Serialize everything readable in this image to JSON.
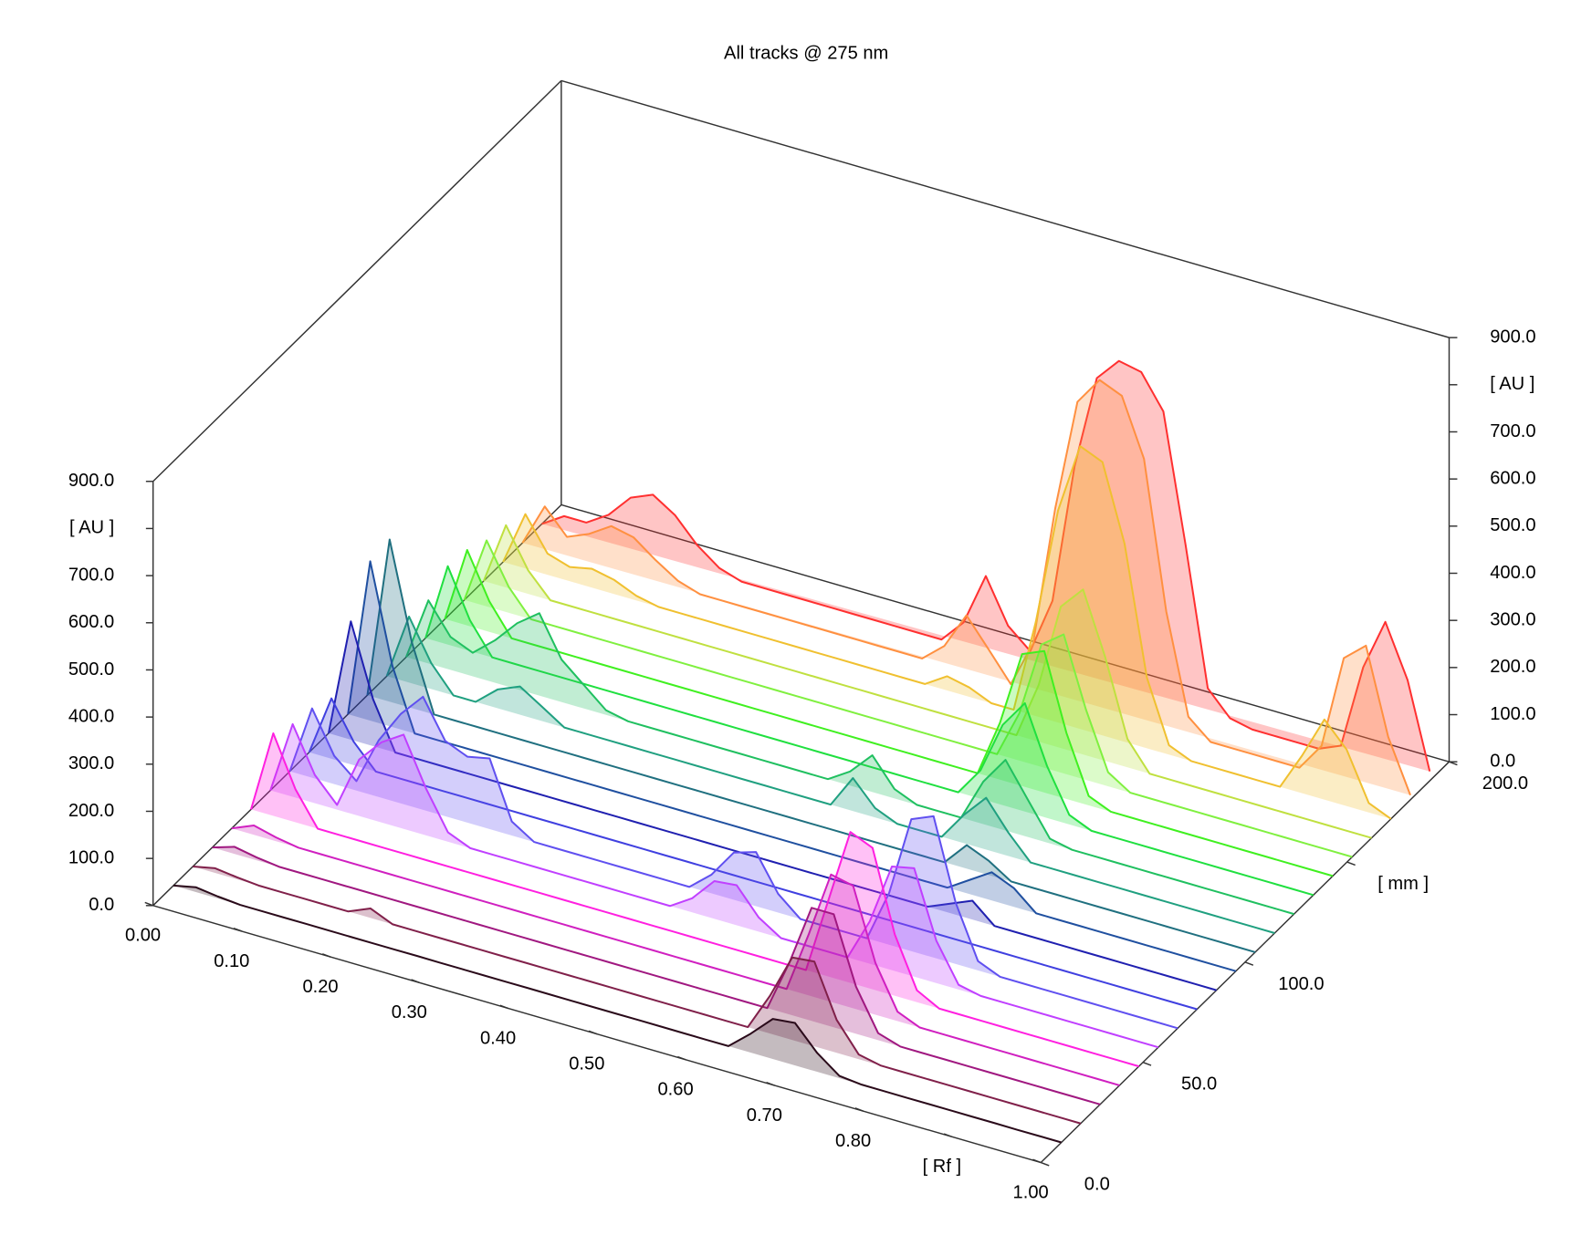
{
  "chart_data": {
    "type": "waterfall",
    "title": "All tracks @ 275 nm",
    "x": [
      0,
      0.025,
      0.05,
      0.075,
      0.1,
      0.125,
      0.15,
      0.175,
      0.2,
      0.225,
      0.25,
      0.275,
      0.3,
      0.325,
      0.35,
      0.375,
      0.4,
      0.425,
      0.45,
      0.475,
      0.5,
      0.525,
      0.55,
      0.575,
      0.6,
      0.625,
      0.65,
      0.675,
      0.7,
      0.725,
      0.75,
      0.775,
      0.8,
      0.825,
      0.85,
      0.875,
      0.9,
      0.925,
      0.95,
      0.975,
      1
    ],
    "xlim": [
      0,
      1
    ],
    "ylim": [
      0,
      200
    ],
    "zlim": [
      0,
      900
    ],
    "xticks": [
      {
        "value": 0,
        "label": "0.00"
      },
      {
        "value": 0.1,
        "label": "0.10"
      },
      {
        "value": 0.2,
        "label": "0.20"
      },
      {
        "value": 0.3,
        "label": "0.30"
      },
      {
        "value": 0.4,
        "label": "0.40"
      },
      {
        "value": 0.5,
        "label": "0.50"
      },
      {
        "value": 0.6,
        "label": "0.60"
      },
      {
        "value": 0.7,
        "label": "0.70"
      },
      {
        "value": 0.8,
        "label": "0.80"
      },
      {
        "value": 0.9,
        "label": "[ Rf ]"
      },
      {
        "value": 1,
        "label": "1.00"
      }
    ],
    "yticks": [
      {
        "value": 0,
        "label": "0.0"
      },
      {
        "value": 50,
        "label": "50.0"
      },
      {
        "value": 100,
        "label": "100.0"
      },
      {
        "value": 150,
        "label": "[ mm ]"
      },
      {
        "value": 200,
        "label": "200.0"
      }
    ],
    "zticks": [
      {
        "value": 0,
        "label": "0.0"
      },
      {
        "value": 100,
        "label": "100.0"
      },
      {
        "value": 200,
        "label": "200.0"
      },
      {
        "value": 300,
        "label": "300.0"
      },
      {
        "value": 400,
        "label": "400.0"
      },
      {
        "value": 500,
        "label": "500.0"
      },
      {
        "value": 600,
        "label": "600.0"
      },
      {
        "value": 700,
        "label": "700.0"
      },
      {
        "value": 800,
        "label": "[ AU ]"
      },
      {
        "value": 900,
        "label": "900.0"
      }
    ],
    "series": [
      {
        "color": "#2a0a1a",
        "position": 10,
        "values": [
          0,
          10,
          4,
          0,
          0,
          0,
          0,
          0,
          0,
          0,
          0,
          0,
          0,
          0,
          0,
          0,
          0,
          0,
          0,
          0,
          0,
          0,
          0,
          0,
          0,
          0,
          40,
          85,
          90,
          40,
          5,
          0,
          0,
          0,
          0,
          0,
          0,
          0,
          0,
          0,
          0
        ]
      },
      {
        "color": "#80204a",
        "position": 19.5,
        "values": [
          0,
          10,
          4,
          0,
          0,
          0,
          0,
          0,
          20,
          0,
          0,
          0,
          0,
          0,
          0,
          0,
          0,
          0,
          0,
          0,
          0,
          0,
          0,
          0,
          0,
          0,
          80,
          175,
          180,
          70,
          10,
          0,
          0,
          0,
          0,
          0,
          0,
          0,
          0,
          0,
          0
        ]
      },
      {
        "color": "#a01880",
        "position": 29,
        "values": [
          0,
          15,
          6,
          0,
          0,
          0,
          0,
          0,
          0,
          0,
          0,
          0,
          0,
          0,
          0,
          0,
          0,
          0,
          0,
          0,
          0,
          0,
          0,
          0,
          0,
          0,
          110,
          240,
          240,
          100,
          15,
          0,
          0,
          0,
          0,
          0,
          0,
          0,
          0,
          0,
          0
        ]
      },
      {
        "color": "#d020c0",
        "position": 38.5,
        "values": [
          0,
          20,
          8,
          0,
          0,
          0,
          0,
          0,
          0,
          0,
          0,
          0,
          0,
          0,
          0,
          0,
          0,
          0,
          0,
          0,
          0,
          0,
          0,
          0,
          0,
          0,
          130,
          270,
          260,
          110,
          20,
          0,
          0,
          0,
          0,
          0,
          0,
          0,
          0,
          0,
          0
        ]
      },
      {
        "color": "#ff20e0",
        "position": 48,
        "values": [
          0,
          175,
          70,
          0,
          0,
          0,
          0,
          0,
          0,
          0,
          0,
          0,
          0,
          0,
          0,
          0,
          0,
          0,
          0,
          0,
          0,
          0,
          0,
          0,
          0,
          0,
          160,
          320,
          300,
          130,
          25,
          0,
          0,
          0,
          0,
          0,
          0,
          0,
          0,
          0,
          0
        ]
      },
      {
        "color": "#c040ff",
        "position": 57.5,
        "values": [
          0,
          154,
          60,
          10,
          120,
          170,
          200,
          100,
          20,
          0,
          0,
          0,
          0,
          0,
          0,
          0,
          0,
          0,
          0,
          30,
          80,
          85,
          30,
          0,
          0,
          0,
          0,
          90,
          220,
          230,
          90,
          10,
          0,
          0,
          0,
          0,
          0,
          0,
          0,
          0,
          0
        ]
      },
      {
        "color": "#6050f0",
        "position": 67,
        "values": [
          0,
          147,
          60,
          20,
          120,
          190,
          240,
          160,
          140,
          150,
          30,
          0,
          0,
          0,
          0,
          0,
          0,
          0,
          0,
          40,
          100,
          115,
          40,
          0,
          0,
          0,
          0,
          110,
          280,
          300,
          130,
          20,
          0,
          0,
          0,
          0,
          0,
          0,
          0,
          0,
          0
        ]
      },
      {
        "color": "#4040e0",
        "position": 76.5,
        "values": [
          0,
          128,
          50,
          0,
          0,
          0,
          0,
          0,
          0,
          0,
          0,
          0,
          0,
          0,
          0,
          0,
          0,
          0,
          0,
          0,
          0,
          0,
          0,
          0,
          0,
          0,
          0,
          0,
          0,
          0,
          0,
          0,
          0,
          0,
          0,
          0,
          0,
          0,
          0,
          0,
          0
        ]
      },
      {
        "color": "#2020b0",
        "position": 86,
        "values": [
          0,
          251,
          100,
          0,
          0,
          0,
          0,
          0,
          0,
          0,
          0,
          0,
          0,
          0,
          0,
          0,
          0,
          0,
          0,
          0,
          0,
          0,
          0,
          0,
          0,
          0,
          0,
          0,
          20,
          40,
          0,
          0,
          0,
          0,
          0,
          0,
          0,
          0,
          0,
          0,
          0
        ]
      },
      {
        "color": "#2050a0",
        "position": 95.5,
        "values": [
          0,
          338,
          130,
          0,
          0,
          0,
          0,
          0,
          0,
          0,
          0,
          0,
          0,
          0,
          0,
          0,
          0,
          0,
          0,
          0,
          0,
          0,
          0,
          0,
          0,
          0,
          0,
          0,
          30,
          60,
          40,
          0,
          0,
          0,
          0,
          0,
          0,
          0,
          0,
          0,
          0
        ]
      },
      {
        "color": "#207080",
        "position": 105,
        "values": [
          0,
          344,
          140,
          0,
          0,
          0,
          0,
          0,
          0,
          0,
          0,
          0,
          0,
          0,
          0,
          0,
          0,
          0,
          0,
          0,
          0,
          0,
          0,
          0,
          0,
          0,
          0,
          50,
          30,
          0,
          0,
          0,
          0,
          0,
          0,
          0,
          0,
          0,
          0,
          0,
          0
        ]
      },
      {
        "color": "#20a080",
        "position": 114.5,
        "values": [
          0,
          140,
          55,
          0,
          0,
          40,
          60,
          30,
          0,
          0,
          0,
          0,
          0,
          0,
          0,
          0,
          0,
          0,
          0,
          0,
          0,
          70,
          20,
          0,
          0,
          0,
          60,
          110,
          50,
          0,
          0,
          0,
          0,
          0,
          0,
          0,
          0,
          0,
          0,
          0,
          0
        ]
      },
      {
        "color": "#20c060",
        "position": 124,
        "values": [
          0,
          134,
          70,
          50,
          90,
          140,
          175,
          90,
          50,
          10,
          0,
          0,
          0,
          0,
          0,
          0,
          0,
          0,
          0,
          0,
          30,
          78,
          20,
          0,
          0,
          0,
          90,
          150,
          80,
          10,
          0,
          0,
          0,
          0,
          0,
          0,
          0,
          0,
          0,
          0,
          0
        ]
      },
      {
        "color": "#20e040",
        "position": 133.5,
        "values": [
          0,
          166,
          65,
          0,
          0,
          0,
          0,
          0,
          0,
          0,
          0,
          0,
          0,
          0,
          0,
          0,
          0,
          0,
          0,
          0,
          0,
          0,
          0,
          0,
          0,
          60,
          170,
          230,
          110,
          20,
          0,
          0,
          0,
          0,
          0,
          0,
          0,
          0,
          0,
          0,
          0
        ]
      },
      {
        "color": "#40f020",
        "position": 143,
        "values": [
          0,
          160,
          65,
          0,
          0,
          0,
          0,
          0,
          0,
          0,
          0,
          0,
          0,
          0,
          0,
          0,
          0,
          0,
          0,
          0,
          0,
          0,
          0,
          0,
          0,
          120,
          280,
          300,
          140,
          20,
          0,
          0,
          0,
          0,
          0,
          0,
          0,
          0,
          0,
          0,
          0
        ]
      },
      {
        "color": "#80f040",
        "position": 152.5,
        "values": [
          0,
          140,
          55,
          0,
          0,
          0,
          0,
          0,
          0,
          0,
          0,
          0,
          0,
          0,
          0,
          0,
          0,
          0,
          0,
          0,
          0,
          0,
          0,
          0,
          0,
          100,
          260,
          295,
          150,
          30,
          0,
          0,
          0,
          0,
          0,
          0,
          0,
          0,
          0,
          0,
          0
        ]
      },
      {
        "color": "#c0e040",
        "position": 162,
        "values": [
          0,
          132,
          50,
          0,
          0,
          0,
          0,
          0,
          0,
          0,
          0,
          0,
          0,
          0,
          0,
          0,
          0,
          0,
          0,
          0,
          0,
          0,
          0,
          0,
          0,
          120,
          300,
          350,
          220,
          60,
          0,
          0,
          0,
          0,
          0,
          0,
          0,
          0,
          0,
          0,
          0
        ]
      },
      {
        "color": "#f0c030",
        "position": 171.5,
        "values": [
          0,
          115,
          45,
          30,
          40,
          30,
          10,
          0,
          0,
          0,
          0,
          0,
          0,
          0,
          0,
          0,
          0,
          0,
          0,
          0,
          30,
          20,
          0,
          0,
          200,
          450,
          600,
          580,
          420,
          150,
          20,
          0,
          0,
          0,
          0,
          0,
          80,
          170,
          120,
          20,
          0
        ]
      },
      {
        "color": "#ff9040",
        "position": 181,
        "values": [
          0,
          91,
          40,
          60,
          90,
          80,
          45,
          15,
          0,
          0,
          0,
          0,
          0,
          0,
          0,
          0,
          0,
          0,
          0,
          40,
          119,
          60,
          0,
          100,
          400,
          640,
          700,
          680,
          560,
          250,
          40,
          0,
          0,
          0,
          0,
          0,
          60,
          260,
          300,
          120,
          10
        ]
      },
      {
        "color": "#ff3030",
        "position": 190.5,
        "values": [
          0,
          30,
          30,
          60,
          110,
          130,
          100,
          50,
          15,
          0,
          0,
          0,
          0,
          0,
          0,
          0,
          0,
          0,
          0,
          50,
          162,
          70,
          30,
          150,
          450,
          650,
          700,
          690,
          620,
          350,
          60,
          10,
          0,
          0,
          0,
          0,
          20,
          200,
          310,
          200,
          20
        ]
      }
    ]
  }
}
